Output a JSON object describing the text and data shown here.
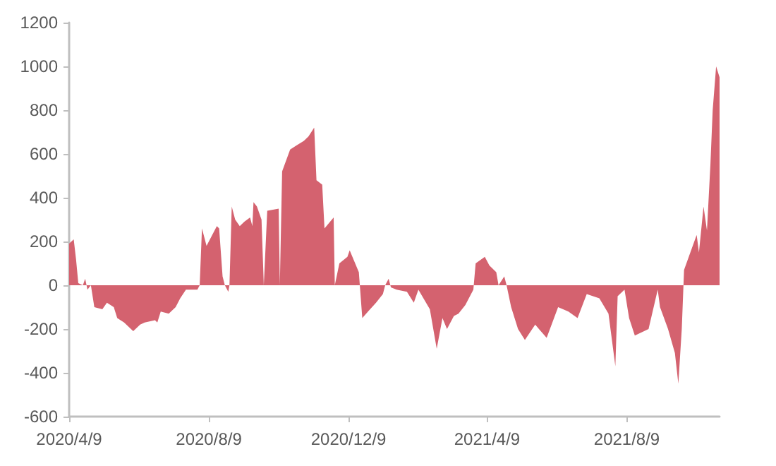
{
  "chart_data": {
    "type": "area",
    "x": [
      "2020-04-09",
      "2020-04-13",
      "2020-04-15",
      "2020-04-17",
      "2020-04-21",
      "2020-04-23",
      "2020-04-25",
      "2020-04-28",
      "2020-05-01",
      "2020-05-08",
      "2020-05-12",
      "2020-05-18",
      "2020-05-21",
      "2020-05-27",
      "2020-06-02",
      "2020-06-04",
      "2020-06-10",
      "2020-06-14",
      "2020-06-23",
      "2020-06-25",
      "2020-06-28",
      "2020-07-05",
      "2020-07-11",
      "2020-07-15",
      "2020-07-20",
      "2020-07-30",
      "2020-08-01",
      "2020-08-03",
      "2020-08-07",
      "2020-08-11",
      "2020-08-16",
      "2020-08-18",
      "2020-08-21",
      "2020-08-23",
      "2020-08-26",
      "2020-08-27",
      "2020-08-29",
      "2020-09-01",
      "2020-09-05",
      "2020-09-09",
      "2020-09-14",
      "2020-09-16",
      "2020-09-17",
      "2020-09-20",
      "2020-09-24",
      "2020-09-26",
      "2020-09-29",
      "2020-10-09",
      "2020-10-10",
      "2020-10-12",
      "2020-10-19",
      "2020-10-25",
      "2020-10-31",
      "2020-11-04",
      "2020-11-09",
      "2020-11-11",
      "2020-11-16",
      "2020-11-18",
      "2020-11-26",
      "2020-11-27",
      "2020-12-01",
      "2020-12-08",
      "2020-12-10",
      "2020-12-14",
      "2020-12-18",
      "2020-12-21",
      "2020-12-26",
      "2021-01-02",
      "2021-01-08",
      "2021-01-10",
      "2021-01-13",
      "2021-01-15",
      "2021-01-20",
      "2021-01-29",
      "2021-02-04",
      "2021-02-08",
      "2021-02-18",
      "2021-02-24",
      "2021-03-01",
      "2021-03-05",
      "2021-03-11",
      "2021-03-15",
      "2021-03-21",
      "2021-03-28",
      "2021-03-30",
      "2021-04-07",
      "2021-04-11",
      "2021-04-17",
      "2021-04-19",
      "2021-04-24",
      "2021-04-26",
      "2021-04-30",
      "2021-05-06",
      "2021-05-12",
      "2021-05-21",
      "2021-05-31",
      "2021-06-10",
      "2021-06-19",
      "2021-06-27",
      "2021-07-05",
      "2021-07-16",
      "2021-07-24",
      "2021-07-30",
      "2021-08-01",
      "2021-08-07",
      "2021-08-11",
      "2021-08-16",
      "2021-08-28",
      "2021-09-05",
      "2021-09-07",
      "2021-09-14",
      "2021-09-20",
      "2021-09-23",
      "2021-09-26",
      "2021-09-28",
      "2021-10-09",
      "2021-10-11",
      "2021-10-15",
      "2021-10-18",
      "2021-10-21",
      "2021-10-23",
      "2021-10-26",
      "2021-10-29"
    ],
    "values": [
      190,
      210,
      120,
      10,
      0,
      30,
      -20,
      0,
      -100,
      -110,
      -80,
      -100,
      -150,
      -170,
      -200,
      -210,
      -180,
      -170,
      -160,
      -170,
      -120,
      -130,
      -100,
      -60,
      -20,
      -20,
      0,
      260,
      180,
      220,
      270,
      260,
      40,
      0,
      -30,
      0,
      360,
      300,
      270,
      290,
      310,
      270,
      380,
      360,
      300,
      0,
      340,
      350,
      0,
      520,
      620,
      640,
      660,
      680,
      720,
      480,
      460,
      260,
      310,
      0,
      100,
      130,
      160,
      110,
      60,
      -150,
      -120,
      -80,
      -40,
      0,
      30,
      -10,
      -20,
      -30,
      -80,
      -20,
      -110,
      -290,
      -150,
      -200,
      -140,
      -130,
      -90,
      -20,
      100,
      130,
      90,
      60,
      0,
      40,
      0,
      -100,
      -200,
      -250,
      -180,
      -240,
      -100,
      -120,
      -150,
      -40,
      -60,
      -130,
      -370,
      -50,
      -20,
      -150,
      -230,
      -200,
      -20,
      -100,
      -200,
      -310,
      -450,
      -200,
      70,
      230,
      150,
      360,
      250,
      550,
      800,
      1000,
      950
    ],
    "color": "#d4626f",
    "xlim": [
      "2020-04-09",
      "2021-10-29"
    ],
    "xticks": [
      {
        "value": "2020-04-09",
        "label": "2020/4/9"
      },
      {
        "value": "2020-08-09",
        "label": "2020/8/9"
      },
      {
        "value": "2020-12-09",
        "label": "2020/12/9"
      },
      {
        "value": "2021-04-09",
        "label": "2021/4/9"
      },
      {
        "value": "2021-08-09",
        "label": "2021/8/9"
      }
    ],
    "ylim": [
      -600,
      1200
    ],
    "yticks": [
      -600,
      -400,
      -200,
      0,
      200,
      400,
      600,
      800,
      1000,
      1200
    ]
  }
}
